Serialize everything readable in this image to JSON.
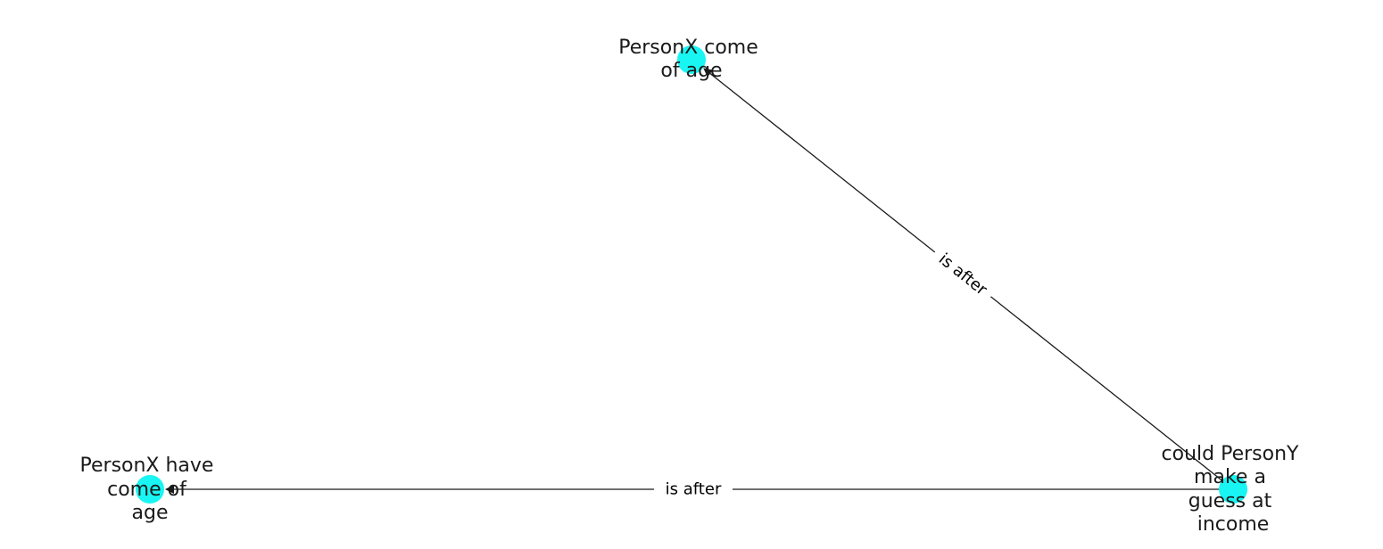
{
  "diagram": {
    "type": "directed-graph",
    "node_color": "#19f5f2",
    "edge_color": "#1a1a1a",
    "nodes": [
      {
        "id": "n1",
        "label_lines": [
          "PersonX come",
          "of age"
        ]
      },
      {
        "id": "n2",
        "label_lines": [
          "PersonX have",
          "come of",
          "age"
        ]
      },
      {
        "id": "n3",
        "label_lines": [
          "could PersonY",
          "make a",
          "guess at",
          "income"
        ]
      }
    ],
    "edges": [
      {
        "from": "n3",
        "to": "n1",
        "label": "is after"
      },
      {
        "from": "n3",
        "to": "n2",
        "label": "is after"
      }
    ]
  }
}
